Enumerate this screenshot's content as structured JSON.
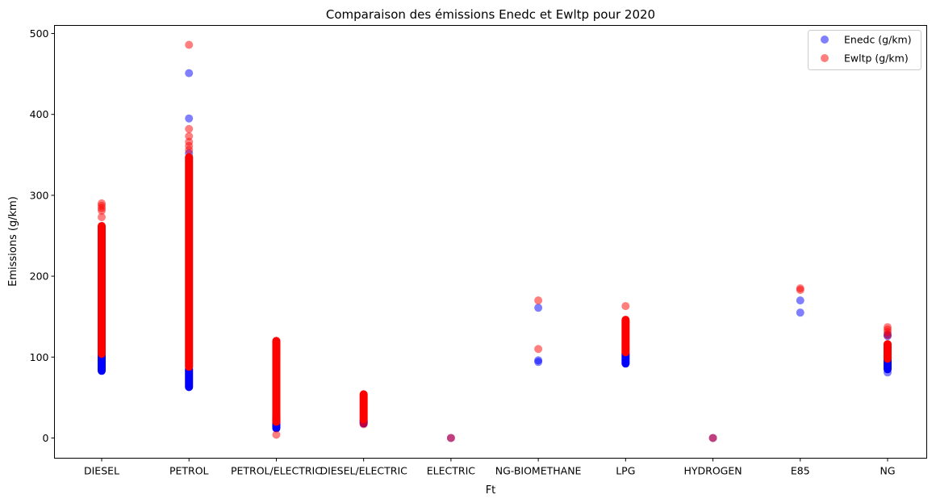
{
  "chart_data": {
    "type": "scatter",
    "title": "Comparaison des émissions Enedc et Ewltp pour 2020",
    "xlabel": "Ft",
    "ylabel": "Emissions (g/km)",
    "categories": [
      "DIESEL",
      "PETROL",
      "PETROL/ELECTRIC",
      "DIESEL/ELECTRIC",
      "ELECTRIC",
      "NG-BIOMETHANE",
      "LPG",
      "HYDROGEN",
      "E85",
      "NG"
    ],
    "ylim": [
      -25,
      510
    ],
    "yticks": [
      0,
      100,
      200,
      300,
      400,
      500
    ],
    "grid": false,
    "legend_position": "top-right",
    "series": [
      {
        "name": "Enedc (g/km)",
        "color": "#0000ff",
        "opacity": 0.5,
        "ranges": [
          {
            "category": "DIESEL",
            "min": 83,
            "max": 105
          },
          {
            "category": "PETROL",
            "min": 63,
            "max": 85
          },
          {
            "category": "PETROL/ELECTRIC",
            "min": 12,
            "max": 25
          },
          {
            "category": "DIESEL/ELECTRIC",
            "min": 18,
            "max": 22
          },
          {
            "category": "LPG",
            "min": 92,
            "max": 105
          },
          {
            "category": "NG",
            "min": 85,
            "max": 97
          }
        ],
        "points": [
          {
            "category": "PETROL",
            "y": 451
          },
          {
            "category": "PETROL",
            "y": 395
          },
          {
            "category": "PETROL",
            "y": 352
          },
          {
            "category": "PETROL/ELECTRIC",
            "y": 103
          },
          {
            "category": "ELECTRIC",
            "y": 0
          },
          {
            "category": "NG-BIOMETHANE",
            "y": 161
          },
          {
            "category": "NG-BIOMETHANE",
            "y": 96
          },
          {
            "category": "NG-BIOMETHANE",
            "y": 94
          },
          {
            "category": "LPG",
            "y": 112
          },
          {
            "category": "HYDROGEN",
            "y": 0
          },
          {
            "category": "E85",
            "y": 170
          },
          {
            "category": "E85",
            "y": 155
          },
          {
            "category": "NG",
            "y": 128
          },
          {
            "category": "NG",
            "y": 126
          },
          {
            "category": "NG",
            "y": 81
          }
        ]
      },
      {
        "name": "Ewltp (g/km)",
        "color": "#ff0000",
        "opacity": 0.5,
        "ranges": [
          {
            "category": "DIESEL",
            "min": 104,
            "max": 262
          },
          {
            "category": "PETROL",
            "min": 88,
            "max": 347
          },
          {
            "category": "PETROL/ELECTRIC",
            "min": 20,
            "max": 120
          },
          {
            "category": "DIESEL/ELECTRIC",
            "min": 23,
            "max": 54
          },
          {
            "category": "LPG",
            "min": 106,
            "max": 146
          },
          {
            "category": "NG",
            "min": 98,
            "max": 116
          }
        ],
        "points": [
          {
            "category": "DIESEL",
            "y": 290
          },
          {
            "category": "DIESEL",
            "y": 287
          },
          {
            "category": "DIESEL",
            "y": 284
          },
          {
            "category": "DIESEL",
            "y": 281
          },
          {
            "category": "DIESEL",
            "y": 273
          },
          {
            "category": "PETROL",
            "y": 486
          },
          {
            "category": "PETROL",
            "y": 382
          },
          {
            "category": "PETROL",
            "y": 373
          },
          {
            "category": "PETROL",
            "y": 366
          },
          {
            "category": "PETROL",
            "y": 361
          },
          {
            "category": "PETROL",
            "y": 356
          },
          {
            "category": "PETROL/ELECTRIC",
            "y": 4
          },
          {
            "category": "PETROL/ELECTRIC",
            "y": 118
          },
          {
            "category": "DIESEL/ELECTRIC",
            "y": 19
          },
          {
            "category": "DIESEL/ELECTRIC",
            "y": 17
          },
          {
            "category": "ELECTRIC",
            "y": 0
          },
          {
            "category": "NG-BIOMETHANE",
            "y": 170
          },
          {
            "category": "NG-BIOMETHANE",
            "y": 110
          },
          {
            "category": "LPG",
            "y": 163
          },
          {
            "category": "HYDROGEN",
            "y": 0
          },
          {
            "category": "E85",
            "y": 185
          },
          {
            "category": "E85",
            "y": 183
          },
          {
            "category": "NG",
            "y": 137
          },
          {
            "category": "NG",
            "y": 134
          },
          {
            "category": "NG",
            "y": 131
          },
          {
            "category": "NG",
            "y": 127
          }
        ]
      }
    ]
  }
}
